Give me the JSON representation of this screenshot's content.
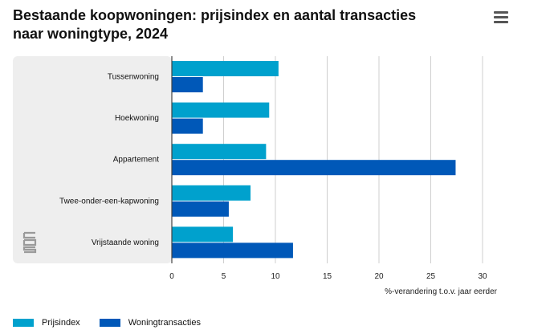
{
  "header": {
    "title_line1": "Bestaande koopwoningen: prijsindex en aantal transacties",
    "title_line2": "naar woningtype, 2024"
  },
  "menu": {
    "icon": "hamburger-menu-icon"
  },
  "logo": {
    "icon": "cbs-logo-icon",
    "text": "cbs"
  },
  "colors": {
    "series1": "#00a1cd",
    "series2": "#0058b8",
    "band": "#eeeeee",
    "grid": "#cfcfcf"
  },
  "chart_data": {
    "type": "bar",
    "orientation": "horizontal",
    "title": "Bestaande koopwoningen: prijsindex en aantal transacties naar woningtype, 2024",
    "categories": [
      "Tussenwoning",
      "Hoekwoning",
      "Appartement",
      "Twee-onder-een-kapwoning",
      "Vrijstaande woning"
    ],
    "series": [
      {
        "name": "Prijsindex",
        "values": [
          10.3,
          9.4,
          9.1,
          7.6,
          5.9
        ]
      },
      {
        "name": "Woningtransacties",
        "values": [
          3.0,
          3.0,
          27.4,
          5.5,
          11.7
        ]
      }
    ],
    "xlabel": "%-verandering t.o.v. jaar eerder",
    "ylabel": "",
    "xlim": [
      0,
      30
    ],
    "xticks": [
      0,
      5,
      10,
      15,
      20,
      25,
      30
    ],
    "grid": true,
    "legend": "bottom-left"
  }
}
